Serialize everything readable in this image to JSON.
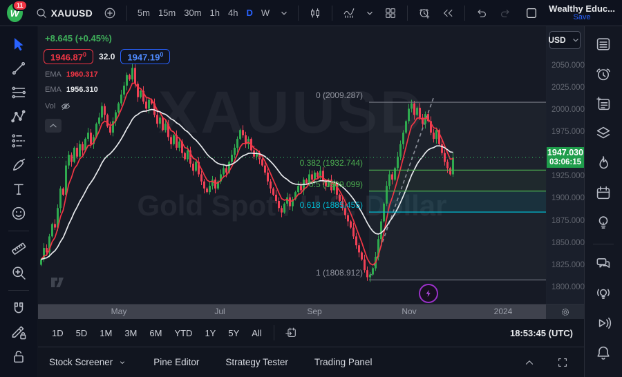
{
  "header": {
    "logo_badge": "11",
    "symbol": "XAUUSD",
    "timeframes": [
      {
        "label": "5m"
      },
      {
        "label": "15m"
      },
      {
        "label": "30m"
      },
      {
        "label": "1h"
      },
      {
        "label": "4h"
      },
      {
        "label": "D",
        "active": true
      },
      {
        "label": "W"
      }
    ],
    "account": {
      "name": "Wealthy Educ...",
      "save": "Save"
    }
  },
  "legend": {
    "change": "+8.645 (+0.45%)",
    "bid": "1946.87",
    "bid_sup": "0",
    "spread": "32.0",
    "ask": "1947.19",
    "ask_sup": "0",
    "indicators": [
      {
        "label": "EMA",
        "value": "1960.317"
      },
      {
        "label": "EMA",
        "value": "1956.310"
      },
      {
        "label": "Vol",
        "value": ""
      }
    ]
  },
  "watermark": {
    "line1": "XAUUSD",
    "line2": "Gold Spot / U.S. Dollar"
  },
  "price_axis": {
    "currency": "USD",
    "ticks": [
      "2050.000",
      "2025.000",
      "2000.000",
      "1975.000",
      "1925.000",
      "1900.000",
      "1875.000",
      "1850.000",
      "1825.000",
      "1800.000"
    ],
    "last_price": "1947.030",
    "countdown": "03:06:15"
  },
  "time_axis": [
    {
      "label": "May",
      "x": 117
    },
    {
      "label": "Jul",
      "x": 263
    },
    {
      "label": "Sep",
      "x": 400
    },
    {
      "label": "Nov",
      "x": 537
    },
    {
      "label": "2024",
      "x": 673
    }
  ],
  "range_bar": {
    "ranges": [
      "1D",
      "5D",
      "1M",
      "3M",
      "6M",
      "YTD",
      "1Y",
      "5Y",
      "All"
    ],
    "clock": "18:53:45 (UTC)"
  },
  "footer": {
    "items": [
      {
        "label": "Stock Screener",
        "caret": true
      },
      {
        "label": "Pine Editor"
      },
      {
        "label": "Strategy Tester"
      },
      {
        "label": "Trading Panel"
      }
    ]
  },
  "left_toolbar": [
    "cursor",
    "trend-line",
    "fib-retracement",
    "xabcd-pattern",
    "forecast",
    "brush",
    "text",
    "emoji",
    "divider",
    "ruler",
    "zoom-in",
    "divider",
    "magnet",
    "drawing-lock",
    "lock"
  ],
  "right_sidebar": [
    "watchlist",
    "alerts",
    "news",
    "object-tree",
    "hotlist",
    "calendar",
    "ideas",
    "divider",
    "chat",
    "ideas-live",
    "streams",
    "notifications"
  ],
  "chart_data": {
    "type": "candlestick",
    "symbol": "XAUUSD",
    "last": 1947.03,
    "ylim": [
      1782,
      2095
    ],
    "closes": [
      1832,
      1845,
      1840,
      1858,
      1872,
      1868,
      1890,
      1912,
      1905,
      1938,
      1950,
      1942,
      1958,
      1948,
      1962,
      1955,
      1968,
      1975,
      1962,
      1970,
      1985,
      1992,
      2005,
      1995,
      1982,
      1975,
      1988,
      1998,
      2008,
      2018,
      2028,
      2040,
      2035,
      2048,
      2030,
      2015,
      2022,
      2010,
      2002,
      2012,
      2008,
      1995,
      1985,
      1992,
      1978,
      1985,
      1970,
      1962,
      1972,
      1958,
      1965,
      1952,
      1945,
      1955,
      1940,
      1932,
      1942,
      1928,
      1920,
      1912,
      1908,
      1915,
      1922,
      1912,
      1920,
      1928,
      1935,
      1930,
      1942,
      1950,
      1958,
      1968,
      1978,
      1972,
      1962,
      1968,
      1955,
      1948,
      1952,
      1945,
      1938,
      1930,
      1920,
      1912,
      1905,
      1898,
      1890,
      1885,
      1895,
      1902,
      1892,
      1900,
      1908,
      1915,
      1910,
      1922,
      1918,
      1928,
      1922,
      1930,
      1925,
      1932,
      1920,
      1915,
      1922,
      1910,
      1918,
      1905,
      1898,
      1890,
      1882,
      1875,
      1868,
      1858,
      1848,
      1840,
      1832,
      1820,
      1812,
      1815,
      1822,
      1835,
      1855,
      1875,
      1895,
      1915,
      1928,
      1922,
      1935,
      1948,
      1962,
      1975,
      1988,
      2002,
      2008,
      1995,
      2003,
      1992,
      1985,
      1996,
      1988,
      1975,
      1968,
      1978,
      1962,
      1952,
      1942,
      1935,
      1928,
      1947
    ],
    "emas": [
      {
        "name": "EMA fast",
        "last": 1960.317
      },
      {
        "name": "EMA slow",
        "last": 1956.31
      }
    ],
    "fib": {
      "start_bar": 119,
      "levels": [
        {
          "ratio": 0,
          "price": 2009.287,
          "label": "0 (2009.287)",
          "color": "#9598a3"
        },
        {
          "ratio": 0.382,
          "price": 1932.744,
          "label": "0.382 (1932.744)",
          "color": "#4caf50"
        },
        {
          "ratio": 0.5,
          "price": 1909.099,
          "label": "0.5 (1909.099)",
          "color": "#4caf50"
        },
        {
          "ratio": 0.618,
          "price": 1885.455,
          "label": "0.618 (1885.455)",
          "color": "#00bcd4"
        },
        {
          "ratio": 1,
          "price": 1808.912,
          "label": "1 (1808.912)",
          "color": "#9598a3"
        }
      ]
    },
    "trendline": {
      "from": {
        "bar": 119,
        "price": 1812
      },
      "to": {
        "bar": 142,
        "price": 2015
      }
    },
    "colors": {
      "up": "#2faa4f",
      "down": "#ef4156",
      "ema_fast": "#f23645",
      "ema_slow": "#e8eaed",
      "price_line": "#2e9e57",
      "badge": "#1f9d4b",
      "accent": "#2962ff"
    }
  }
}
